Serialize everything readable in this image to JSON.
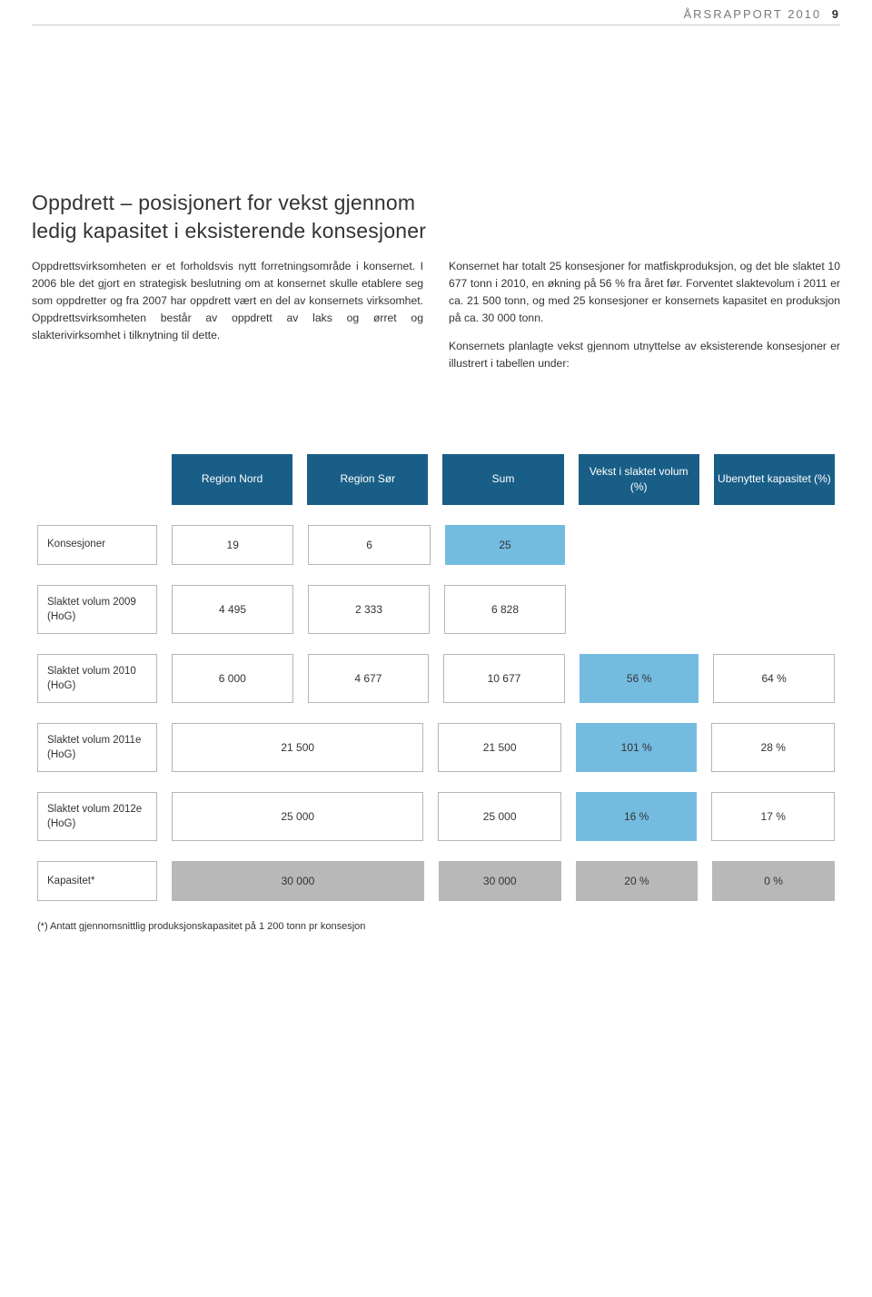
{
  "header": {
    "title": "ÅRSRAPPORT 2010",
    "page_number": "9"
  },
  "heading": "Oppdrett – posisjonert for vekst gjennom ledig kapasitet i eksisterende konsesjoner",
  "body": {
    "left": "Oppdrettsvirksomheten er et forholdsvis nytt forretningsområde i konsernet. I 2006 ble det gjort en strategisk beslutning om at konsernet skulle etablere seg som oppdretter og fra 2007 har oppdrett vært en del av konsernets virksomhet. Oppdrettsvirksomheten består av oppdrett av laks og ørret og slakterivirksomhet i tilknytning til dette.",
    "right": "Konsernet har totalt 25 konsesjoner for matfiskproduksjon, og det ble slaktet 10 677 tonn i 2010, en økning på 56 % fra året før. Forventet slaktevolum i 2011 er ca. 21 500 tonn, og med 25 konsesjoner er konsernets kapasitet en produksjon på ca. 30 000 tonn.\n\nKonsernets planlagte vekst gjennom utnyttelse av eksisterende konsesjoner er illustrert i tabellen under:"
  },
  "table": {
    "colors": {
      "header_bg": "#195e87",
      "header_text": "#ffffff",
      "highlight_bg": "#74bbe0",
      "gray_bg": "#b8b8b8",
      "border": "#b5b5b5",
      "text": "#333333"
    },
    "headers": {
      "c1": "Region Nord",
      "c2": "Region Sør",
      "c3": "Sum",
      "c4": "Vekst i slaktet volum (%)",
      "c5": "Ubenyttet kapasitet (%)"
    },
    "rows": [
      {
        "label": "Konsesjoner",
        "cells": [
          {
            "v": "19",
            "style": "plain"
          },
          {
            "v": "6",
            "style": "plain"
          },
          {
            "v": "25",
            "style": "blue-light"
          },
          {
            "v": "",
            "style": "blank"
          },
          {
            "v": "",
            "style": "blank"
          }
        ]
      },
      {
        "label": "Slaktet volum 2009 (HoG)",
        "cells": [
          {
            "v": "4 495",
            "style": "plain"
          },
          {
            "v": "2 333",
            "style": "plain"
          },
          {
            "v": "6 828",
            "style": "plain"
          },
          {
            "v": "",
            "style": "blank"
          },
          {
            "v": "",
            "style": "blank"
          }
        ]
      },
      {
        "label": "Slaktet volum 2010 (HoG)",
        "cells": [
          {
            "v": "6 000",
            "style": "plain"
          },
          {
            "v": "4 677",
            "style": "plain"
          },
          {
            "v": "10 677",
            "style": "plain"
          },
          {
            "v": "56 %",
            "style": "blue-light"
          },
          {
            "v": "64 %",
            "style": "plain"
          }
        ]
      },
      {
        "label": "Slaktet volum 2011e (HoG)",
        "cells": [
          {
            "v": "21 500",
            "style": "plain",
            "span": 2
          },
          {
            "v": "21 500",
            "style": "plain"
          },
          {
            "v": "101 %",
            "style": "blue-light"
          },
          {
            "v": "28 %",
            "style": "plain"
          }
        ]
      },
      {
        "label": "Slaktet volum 2012e (HoG)",
        "cells": [
          {
            "v": "25 000",
            "style": "plain",
            "span": 2
          },
          {
            "v": "25 000",
            "style": "plain"
          },
          {
            "v": "16 %",
            "style": "blue-light"
          },
          {
            "v": "17 %",
            "style": "plain"
          }
        ]
      },
      {
        "label": "Kapasitet*",
        "cells": [
          {
            "v": "30 000",
            "style": "gray",
            "span": 2
          },
          {
            "v": "30 000",
            "style": "gray"
          },
          {
            "v": "20 %",
            "style": "gray"
          },
          {
            "v": "0 %",
            "style": "gray"
          }
        ]
      }
    ]
  },
  "footnote": "(*) Antatt gjennomsnittlig produksjonskapasitet på 1 200 tonn pr konsesjon"
}
